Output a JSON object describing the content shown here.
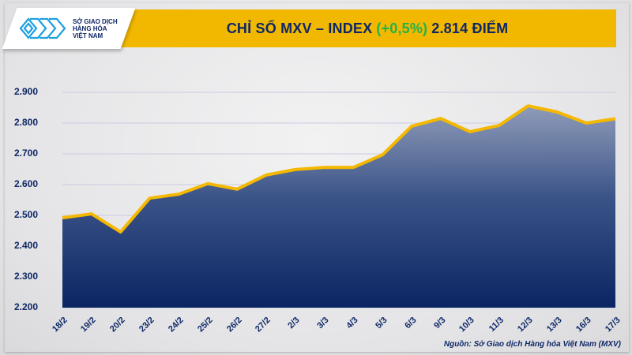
{
  "header": {
    "logo_lines": [
      "SỞ GIAO DỊCH",
      "HÀNG HÓA",
      "VIỆT NAM"
    ],
    "title_main": "CHỈ SỐ MXV – INDEX",
    "title_change": "(+0,5%)",
    "title_value": "2.814 ĐIỂM"
  },
  "colors": {
    "banner": "#f2b800",
    "title_text": "#0e2766",
    "change_positive": "#22b24c",
    "line": "#f5b800",
    "area_top": "#8a97b6",
    "area_bottom": "#0b2563"
  },
  "source": "Nguồn: Sở Giao dịch Hàng hóa Việt Nam (MXV)",
  "chart_data": {
    "type": "area",
    "title": "CHỈ SỐ MXV – INDEX (+0,5%) 2.814 ĐIỂM",
    "xlabel": "",
    "ylabel": "",
    "categories": [
      "18/2",
      "19/2",
      "20/2",
      "23/2",
      "24/2",
      "25/2",
      "26/2",
      "27/2",
      "2/3",
      "3/3",
      "4/3",
      "5/3",
      "6/3",
      "9/3",
      "10/3",
      "11/3",
      "12/3",
      "13/3",
      "16/3",
      "17/3"
    ],
    "series": [
      {
        "name": "MXV-Index",
        "values": [
          2492,
          2505,
          2446,
          2556,
          2569,
          2603,
          2585,
          2631,
          2649,
          2656,
          2656,
          2697,
          2790,
          2815,
          2772,
          2792,
          2856,
          2836,
          2800,
          2814
        ]
      }
    ],
    "ylim": [
      2200,
      2900
    ],
    "yticks": [
      2200,
      2300,
      2400,
      2500,
      2600,
      2700,
      2800,
      2900
    ],
    "ytick_labels": [
      "2.200",
      "2.300",
      "2.400",
      "2.500",
      "2.600",
      "2.700",
      "2.800",
      "2.900"
    ],
    "grid": true,
    "legend": "none"
  }
}
